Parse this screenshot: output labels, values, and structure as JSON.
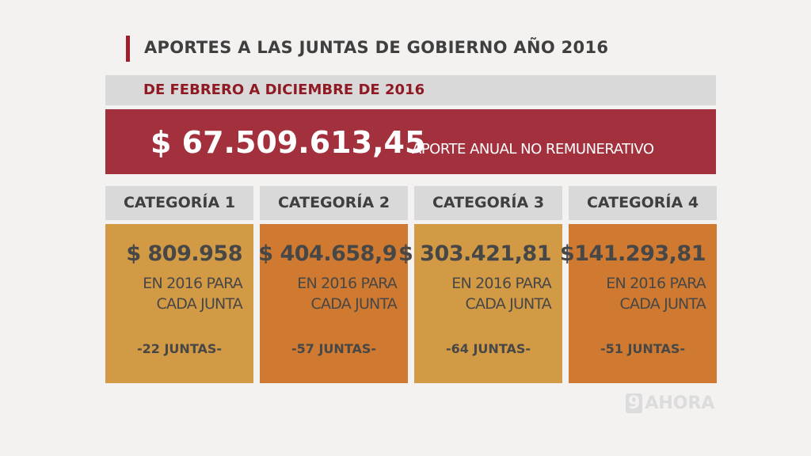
{
  "title": "APORTES A LAS JUNTAS DE GOBIERNO AÑO 2016",
  "subtitle": "DE FEBRERO A DICIEMBRE DE 2016",
  "total": {
    "amount": "$ 67.509.613,45",
    "label": "APORTE ANUAL NO REMUNERATIVO"
  },
  "colors": {
    "red": "#a2303d",
    "light_orange": "#d39a45",
    "dark_orange": "#cf7a30"
  },
  "categories": [
    {
      "name": "CATEGORÍA 1",
      "amount": "$ 809.958",
      "line1": "EN 2016 PARA",
      "line2": "CADA JUNTA",
      "juntas": "-22 JUNTAS-"
    },
    {
      "name": "CATEGORÍA 2",
      "amount": "$ 404.658,9",
      "line1": "EN 2016 PARA",
      "line2": "CADA JUNTA",
      "juntas": "-57 JUNTAS-"
    },
    {
      "name": "CATEGORÍA 3",
      "amount": "$ 303.421,81",
      "line1": "EN 2016 PARA",
      "line2": "CADA JUNTA",
      "juntas": "-64 JUNTAS-"
    },
    {
      "name": "CATEGORÍA 4",
      "amount": "$141.293,81",
      "line1": "EN 2016 PARA",
      "line2": "CADA JUNTA",
      "juntas": "-51 JUNTAS-"
    }
  ],
  "logo": {
    "number": "9",
    "text": "AHORA"
  }
}
